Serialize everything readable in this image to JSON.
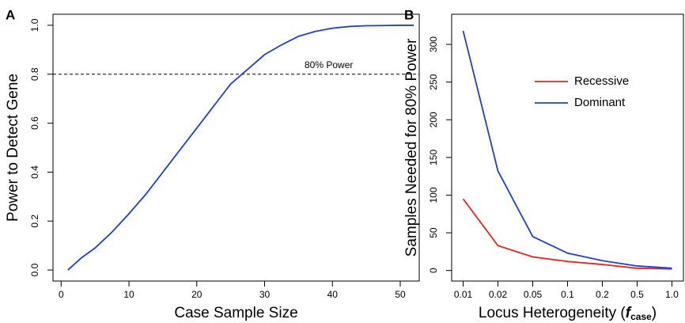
{
  "chart_data": [
    {
      "type": "line",
      "panel_label": "A",
      "x_label": "Case Sample Size",
      "y_label": "Power to Detect Gene",
      "x": [
        1,
        3,
        5,
        7.5,
        10,
        12.5,
        15,
        17.5,
        20,
        22.5,
        25,
        27.5,
        30,
        32.5,
        35,
        37.5,
        40,
        42.5,
        45,
        47.5,
        50,
        52
      ],
      "series": [
        {
          "color": "#1f3fd6",
          "values": [
            0,
            0.05,
            0.09,
            0.155,
            0.23,
            0.31,
            0.4,
            0.49,
            0.58,
            0.67,
            0.76,
            0.82,
            0.88,
            0.92,
            0.955,
            0.975,
            0.988,
            0.995,
            0.998,
            0.999,
            1.0,
            1.0
          ]
        }
      ],
      "hline": 0.8,
      "hline_text": "80% Power",
      "xlim": [
        -1.2,
        52.8
      ],
      "xticks": [
        0,
        10,
        20,
        30,
        40,
        50
      ],
      "ylim": [
        -0.045,
        1.045
      ],
      "yticks": [
        {
          "value": 0,
          "label": "0.0"
        },
        {
          "value": 0.2,
          "label": "0.2"
        },
        {
          "value": 0.4,
          "label": "0.4"
        },
        {
          "value": 0.6,
          "label": "0.6"
        },
        {
          "value": 0.8,
          "label": "0.8"
        },
        {
          "value": 1,
          "label": "1.0"
        }
      ]
    },
    {
      "type": "line",
      "panel_label": "B",
      "x_label_parts": [
        "Locus Heterogeneity (",
        "f",
        "case",
        ")"
      ],
      "y_label": "Samples Needed for 80% Power",
      "categories": [
        "0.01",
        "0.02",
        "0.05",
        "0.1",
        "0.2",
        "0.5",
        "1.0"
      ],
      "series": [
        {
          "name": "Recessive",
          "color": "#e8231a",
          "values": [
            95,
            33,
            18,
            12,
            8,
            3,
            2
          ]
        },
        {
          "name": "Dominant",
          "color": "#1f3fd6",
          "values": [
            318,
            132,
            45,
            23,
            13,
            6,
            3
          ]
        }
      ],
      "ylim": [
        -14,
        340
      ],
      "yticks": [
        0,
        50,
        100,
        150,
        200,
        250,
        300
      ]
    }
  ]
}
